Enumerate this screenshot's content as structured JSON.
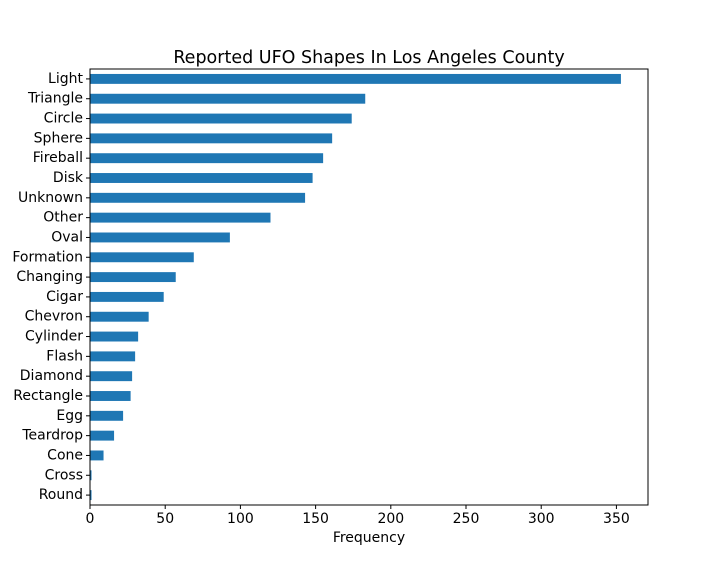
{
  "chart_data": {
    "type": "bar",
    "orientation": "horizontal",
    "title": "Reported UFO Shapes In Los Angeles County",
    "xlabel": "Frequency",
    "ylabel": "",
    "categories": [
      "Light",
      "Triangle",
      "Circle",
      "Sphere",
      "Fireball",
      "Disk",
      "Unknown",
      "Other",
      "Oval",
      "Formation",
      "Changing",
      "Cigar",
      "Chevron",
      "Cylinder",
      "Flash",
      "Diamond",
      "Rectangle",
      "Egg",
      "Teardrop",
      "Cone",
      "Cross",
      "Round"
    ],
    "values": [
      353,
      183,
      174,
      161,
      155,
      148,
      143,
      120,
      93,
      69,
      57,
      49,
      39,
      32,
      30,
      28,
      27,
      22,
      16,
      9,
      1,
      1
    ],
    "xlim": [
      0,
      371
    ],
    "xticks": [
      0,
      50,
      100,
      150,
      200,
      250,
      300,
      350
    ],
    "grid": false,
    "bar_color": "#1f77b4"
  }
}
